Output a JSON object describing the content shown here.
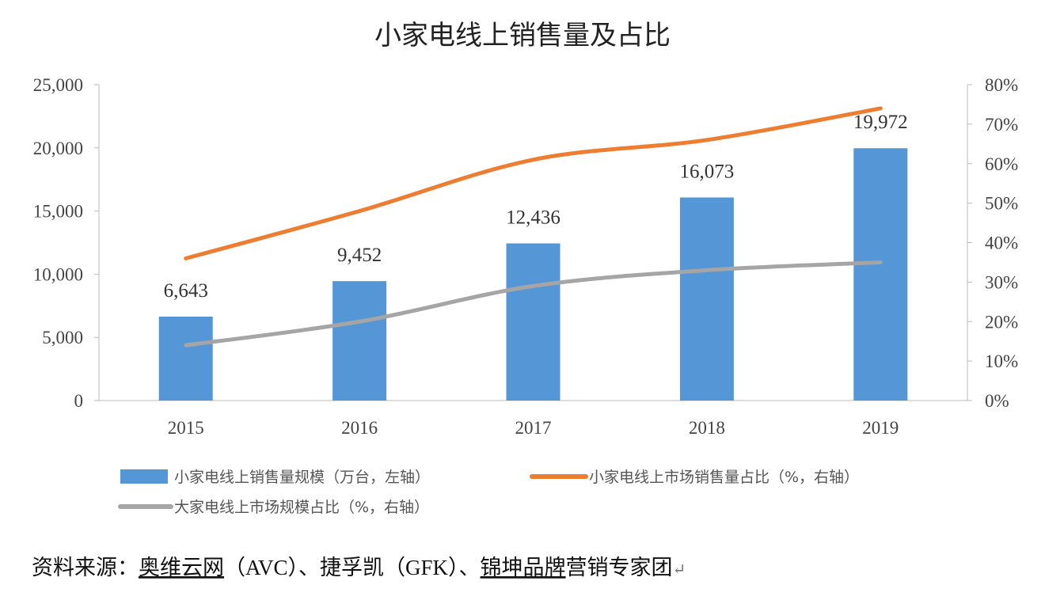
{
  "chart_data": {
    "type": "bar+line",
    "title": "小家电线上销售量及占比",
    "categories": [
      "2015",
      "2016",
      "2017",
      "2018",
      "2019"
    ],
    "left_axis": {
      "ylim": [
        0,
        25000
      ],
      "ticks": [
        "0",
        "5,000",
        "10,000",
        "15,000",
        "20,000",
        "25,000"
      ]
    },
    "right_axis": {
      "ylim": [
        0,
        80
      ],
      "ticks": [
        "0%",
        "10%",
        "20%",
        "30%",
        "40%",
        "50%",
        "60%",
        "70%",
        "80%"
      ]
    },
    "series": [
      {
        "name": "小家电线上销售量规模（万台，左轴）",
        "type": "bar",
        "axis": "left",
        "color": "#5596d6",
        "values": [
          6643,
          9452,
          12436,
          16073,
          19972
        ],
        "labels": [
          "6,643",
          "9,452",
          "12,436",
          "16,073",
          "19,972"
        ]
      },
      {
        "name": "小家电线上市场销售量占比（%，右轴）",
        "type": "line",
        "axis": "right",
        "color": "#ed7d31",
        "values": [
          36,
          48,
          61,
          66,
          74
        ]
      },
      {
        "name": "大家电线上市场规模占比（%，右轴）",
        "type": "line",
        "axis": "right",
        "color": "#a5a5a5",
        "values": [
          14,
          20,
          29,
          33,
          35
        ]
      }
    ],
    "grid": false,
    "legend": "bottom"
  },
  "source": {
    "prefix": "资料来源：",
    "parts": [
      "奥维云网",
      "（AVC）、",
      "捷孚凯",
      "（GFK）、",
      "锦坤品牌",
      "营销专家团"
    ],
    "mark": "↵"
  }
}
